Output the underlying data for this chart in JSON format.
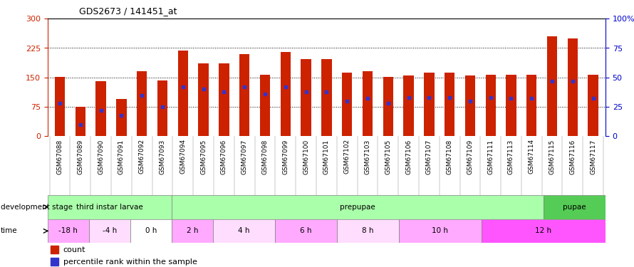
{
  "title": "GDS2673 / 141451_at",
  "samples": [
    "GSM67088",
    "GSM67089",
    "GSM67090",
    "GSM67091",
    "GSM67092",
    "GSM67093",
    "GSM67094",
    "GSM67095",
    "GSM67096",
    "GSM67097",
    "GSM67098",
    "GSM67099",
    "GSM67100",
    "GSM67101",
    "GSM67102",
    "GSM67103",
    "GSM67105",
    "GSM67106",
    "GSM67107",
    "GSM67108",
    "GSM67109",
    "GSM67111",
    "GSM67113",
    "GSM67114",
    "GSM67115",
    "GSM67116",
    "GSM67117"
  ],
  "counts": [
    152,
    75,
    140,
    95,
    165,
    143,
    218,
    185,
    185,
    210,
    157,
    215,
    197,
    197,
    162,
    165,
    152,
    155,
    163,
    162,
    155,
    157,
    157,
    157,
    255,
    250,
    157
  ],
  "percentile_ranks": [
    28,
    10,
    22,
    18,
    35,
    25,
    42,
    40,
    38,
    42,
    36,
    42,
    38,
    38,
    30,
    32,
    28,
    33,
    33,
    33,
    30,
    33,
    32,
    32,
    47,
    47,
    32
  ],
  "ylim_left": [
    0,
    300
  ],
  "ylim_right": [
    0,
    100
  ],
  "yticks_left": [
    0,
    75,
    150,
    225,
    300
  ],
  "yticks_right": [
    0,
    25,
    50,
    75,
    100
  ],
  "bar_color": "#cc2200",
  "dot_color": "#3333cc",
  "bg_color": "#ffffff",
  "axis_color_left": "#cc2200",
  "axis_color_right": "#0000cc",
  "dev_blocks": [
    {
      "label": "third instar larvae",
      "start": 0,
      "end": 6,
      "color": "#aaffaa"
    },
    {
      "label": "prepupae",
      "start": 6,
      "end": 24,
      "color": "#aaffaa"
    },
    {
      "label": "pupae",
      "start": 24,
      "end": 27,
      "color": "#55cc55"
    }
  ],
  "time_blocks": [
    {
      "label": "-18 h",
      "start": 0,
      "end": 2,
      "color": "#ffaaff"
    },
    {
      "label": "-4 h",
      "start": 2,
      "end": 4,
      "color": "#ffddff"
    },
    {
      "label": "0 h",
      "start": 4,
      "end": 6,
      "color": "#ffffff"
    },
    {
      "label": "2 h",
      "start": 6,
      "end": 8,
      "color": "#ffaaff"
    },
    {
      "label": "4 h",
      "start": 8,
      "end": 11,
      "color": "#ffddff"
    },
    {
      "label": "6 h",
      "start": 11,
      "end": 14,
      "color": "#ffaaff"
    },
    {
      "label": "8 h",
      "start": 14,
      "end": 17,
      "color": "#ffddff"
    },
    {
      "label": "10 h",
      "start": 17,
      "end": 21,
      "color": "#ffaaff"
    },
    {
      "label": "12 h",
      "start": 21,
      "end": 27,
      "color": "#ff55ff"
    }
  ]
}
